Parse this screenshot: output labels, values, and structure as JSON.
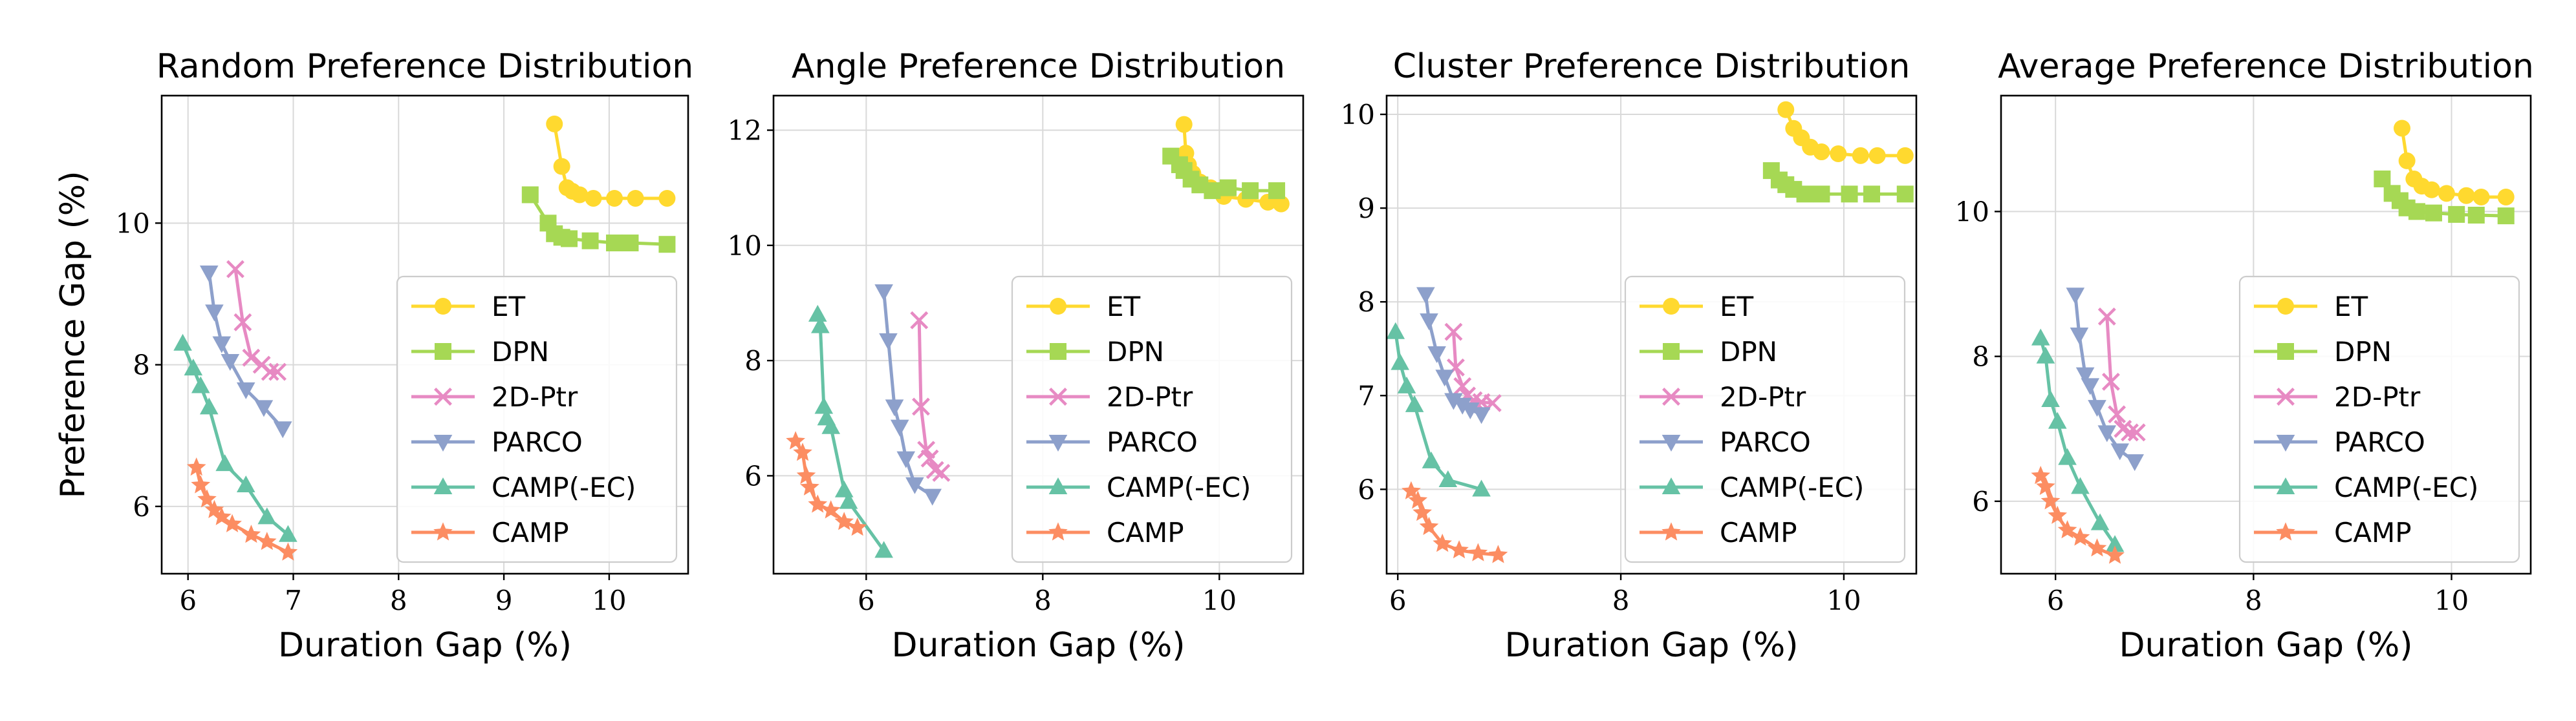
{
  "colors": {
    "ET": "#ffd92f",
    "DPN": "#a6d854",
    "2D-Ptr": "#e78ac3",
    "PARCO": "#8da0cb",
    "CAMP(-EC)": "#66c2a5",
    "CAMP": "#fc8d62"
  },
  "markers": {
    "ET": "circle",
    "DPN": "square",
    "2D-Ptr": "x",
    "PARCO": "triangle-down",
    "CAMP(-EC)": "triangle-up",
    "CAMP": "star"
  },
  "chart_data": [
    {
      "type": "line",
      "title": "Random Preference Distribution",
      "xlabel": "Duration Gap (%)",
      "ylabel": "Preference Gap (%)",
      "xlim": [
        5.75,
        10.75
      ],
      "ylim": [
        5.05,
        11.8
      ],
      "xticks": [
        6,
        7,
        8,
        9,
        10
      ],
      "xtick_labels": [
        "6",
        "7",
        "8",
        "9",
        "10"
      ],
      "yticks": [
        6,
        8,
        10
      ],
      "ytick_labels": [
        "6",
        "8",
        "10"
      ],
      "grid": true,
      "legend_position": "lower-right",
      "series": [
        {
          "name": "ET",
          "x": [
            9.48,
            9.55,
            9.6,
            9.65,
            9.72,
            9.85,
            10.05,
            10.25,
            10.55
          ],
          "y": [
            11.4,
            10.8,
            10.5,
            10.45,
            10.4,
            10.35,
            10.35,
            10.35,
            10.35
          ]
        },
        {
          "name": "DPN",
          "x": [
            9.25,
            9.42,
            9.48,
            9.55,
            9.62,
            9.82,
            10.05,
            10.2,
            10.55
          ],
          "y": [
            10.4,
            10.0,
            9.85,
            9.8,
            9.78,
            9.75,
            9.72,
            9.72,
            9.7
          ]
        },
        {
          "name": "2D-Ptr",
          "x": [
            6.45,
            6.52,
            6.6,
            6.7,
            6.78,
            6.85
          ],
          "y": [
            9.35,
            8.6,
            8.1,
            8.0,
            7.9,
            7.9
          ]
        },
        {
          "name": "PARCO",
          "x": [
            6.2,
            6.25,
            6.32,
            6.4,
            6.55,
            6.72,
            6.9
          ],
          "y": [
            9.3,
            8.75,
            8.3,
            8.05,
            7.65,
            7.4,
            7.1
          ]
        },
        {
          "name": "CAMP(-EC)",
          "x": [
            5.95,
            6.05,
            6.12,
            6.2,
            6.35,
            6.55,
            6.75,
            6.95
          ],
          "y": [
            8.3,
            7.95,
            7.7,
            7.4,
            6.6,
            6.3,
            5.85,
            5.6
          ]
        },
        {
          "name": "CAMP",
          "x": [
            6.08,
            6.12,
            6.18,
            6.25,
            6.32,
            6.42,
            6.6,
            6.75,
            6.95
          ],
          "y": [
            6.55,
            6.3,
            6.1,
            5.95,
            5.85,
            5.75,
            5.6,
            5.5,
            5.35
          ]
        }
      ]
    },
    {
      "type": "line",
      "title": "Angle Preference Distribution",
      "xlabel": "Duration Gap (%)",
      "ylabel": "",
      "xlim": [
        4.95,
        10.95
      ],
      "ylim": [
        4.3,
        12.6
      ],
      "xticks": [
        6,
        8,
        10
      ],
      "xtick_labels": [
        "6",
        "8",
        "10"
      ],
      "yticks": [
        6,
        8,
        10,
        12
      ],
      "ytick_labels": [
        "6",
        "8",
        "10",
        "12"
      ],
      "grid": true,
      "legend_position": "lower-right",
      "series": [
        {
          "name": "ET",
          "x": [
            9.6,
            9.62,
            9.65,
            9.7,
            9.78,
            9.9,
            10.05,
            10.3,
            10.55,
            10.7
          ],
          "y": [
            12.1,
            11.6,
            11.4,
            11.25,
            11.1,
            11.0,
            10.85,
            10.8,
            10.75,
            10.72
          ]
        },
        {
          "name": "DPN",
          "x": [
            9.45,
            9.55,
            9.6,
            9.68,
            9.78,
            9.92,
            10.1,
            10.35,
            10.65
          ],
          "y": [
            11.55,
            11.4,
            11.3,
            11.15,
            11.05,
            10.95,
            11.0,
            10.95,
            10.95
          ]
        },
        {
          "name": "2D-Ptr",
          "x": [
            6.6,
            6.62,
            6.68,
            6.72,
            6.78,
            6.85
          ],
          "y": [
            8.7,
            7.2,
            6.45,
            6.3,
            6.1,
            6.05
          ]
        },
        {
          "name": "PARCO",
          "x": [
            6.2,
            6.25,
            6.32,
            6.38,
            6.45,
            6.55,
            6.75
          ],
          "y": [
            9.2,
            8.35,
            7.2,
            6.85,
            6.3,
            5.85,
            5.65
          ]
        },
        {
          "name": "CAMP(-EC)",
          "x": [
            5.45,
            5.48,
            5.52,
            5.55,
            5.6,
            5.75,
            5.8,
            6.2
          ],
          "y": [
            8.8,
            8.6,
            7.2,
            7.0,
            6.85,
            5.75,
            5.55,
            4.7
          ]
        },
        {
          "name": "CAMP",
          "x": [
            5.2,
            5.28,
            5.32,
            5.36,
            5.45,
            5.6,
            5.75,
            5.9
          ],
          "y": [
            6.6,
            6.4,
            6.0,
            5.8,
            5.5,
            5.4,
            5.2,
            5.1
          ]
        }
      ]
    },
    {
      "type": "line",
      "title": "Cluster Preference Distribution",
      "xlabel": "Duration Gap (%)",
      "ylabel": "",
      "xlim": [
        5.9,
        10.65
      ],
      "ylim": [
        5.1,
        10.2
      ],
      "xticks": [
        6,
        8,
        10
      ],
      "xtick_labels": [
        "6",
        "8",
        "10"
      ],
      "yticks": [
        6,
        7,
        8,
        9,
        10
      ],
      "ytick_labels": [
        "6",
        "7",
        "8",
        "9",
        "10"
      ],
      "grid": true,
      "legend_position": "lower-right",
      "series": [
        {
          "name": "ET",
          "x": [
            9.48,
            9.55,
            9.62,
            9.7,
            9.8,
            9.95,
            10.15,
            10.3,
            10.55
          ],
          "y": [
            10.05,
            9.85,
            9.75,
            9.65,
            9.6,
            9.58,
            9.56,
            9.56,
            9.56
          ]
        },
        {
          "name": "DPN",
          "x": [
            9.35,
            9.42,
            9.48,
            9.55,
            9.65,
            9.8,
            10.05,
            10.25,
            10.55
          ],
          "y": [
            9.4,
            9.3,
            9.25,
            9.2,
            9.15,
            9.15,
            9.15,
            9.15,
            9.15
          ]
        },
        {
          "name": "2D-Ptr",
          "x": [
            6.5,
            6.52,
            6.58,
            6.62,
            6.68,
            6.75,
            6.85
          ],
          "y": [
            7.68,
            7.3,
            7.1,
            7.0,
            6.95,
            6.93,
            6.92
          ]
        },
        {
          "name": "PARCO",
          "x": [
            6.25,
            6.28,
            6.35,
            6.42,
            6.5,
            6.58,
            6.65,
            6.75
          ],
          "y": [
            8.08,
            7.8,
            7.45,
            7.2,
            6.95,
            6.9,
            6.85,
            6.8
          ]
        },
        {
          "name": "CAMP(-EC)",
          "x": [
            5.98,
            6.02,
            6.08,
            6.15,
            6.3,
            6.45,
            6.75
          ],
          "y": [
            7.68,
            7.35,
            7.1,
            6.9,
            6.3,
            6.1,
            6.0
          ]
        },
        {
          "name": "CAMP",
          "x": [
            6.12,
            6.18,
            6.22,
            6.28,
            6.4,
            6.55,
            6.72,
            6.9
          ],
          "y": [
            5.98,
            5.88,
            5.75,
            5.6,
            5.42,
            5.35,
            5.32,
            5.3
          ]
        }
      ]
    },
    {
      "type": "line",
      "title": "Average Preference Distribution",
      "xlabel": "Duration Gap (%)",
      "ylabel": "",
      "xlim": [
        5.45,
        10.8
      ],
      "ylim": [
        5.0,
        11.6
      ],
      "xticks": [
        6,
        8,
        10
      ],
      "xtick_labels": [
        "6",
        "8",
        "10"
      ],
      "yticks": [
        6,
        8,
        10
      ],
      "ytick_labels": [
        "6",
        "8",
        "10"
      ],
      "grid": true,
      "legend_position": "lower-right",
      "series": [
        {
          "name": "ET",
          "x": [
            9.5,
            9.55,
            9.62,
            9.7,
            9.8,
            9.95,
            10.15,
            10.3,
            10.55
          ],
          "y": [
            11.15,
            10.7,
            10.45,
            10.35,
            10.3,
            10.25,
            10.22,
            10.2,
            10.2
          ]
        },
        {
          "name": "DPN",
          "x": [
            9.3,
            9.4,
            9.48,
            9.55,
            9.65,
            9.82,
            10.05,
            10.25,
            10.55
          ],
          "y": [
            10.45,
            10.25,
            10.15,
            10.05,
            10.0,
            9.98,
            9.96,
            9.95,
            9.94
          ]
        },
        {
          "name": "2D-Ptr",
          "x": [
            6.52,
            6.56,
            6.62,
            6.68,
            6.75,
            6.82
          ],
          "y": [
            8.55,
            7.65,
            7.2,
            7.0,
            6.95,
            6.95
          ]
        },
        {
          "name": "PARCO",
          "x": [
            6.2,
            6.24,
            6.3,
            6.35,
            6.42,
            6.52,
            6.65,
            6.8
          ],
          "y": [
            8.85,
            8.3,
            7.75,
            7.6,
            7.3,
            6.95,
            6.7,
            6.55
          ]
        },
        {
          "name": "CAMP(-EC)",
          "x": [
            5.85,
            5.9,
            5.95,
            6.02,
            6.12,
            6.25,
            6.45,
            6.6
          ],
          "y": [
            8.25,
            8.0,
            7.4,
            7.1,
            6.6,
            6.2,
            5.7,
            5.4
          ]
        },
        {
          "name": "CAMP",
          "x": [
            5.85,
            5.9,
            5.95,
            6.02,
            6.12,
            6.25,
            6.42,
            6.6
          ],
          "y": [
            6.35,
            6.2,
            6.0,
            5.8,
            5.6,
            5.5,
            5.35,
            5.25
          ]
        }
      ]
    }
  ]
}
